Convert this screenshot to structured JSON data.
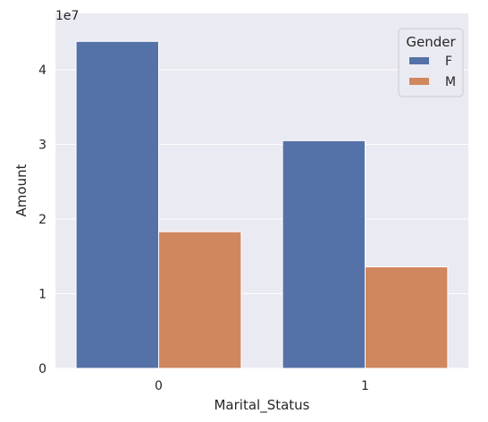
{
  "chart_data": {
    "type": "bar",
    "categories": [
      "0",
      "1"
    ],
    "series": [
      {
        "name": "F",
        "values": [
          43800000,
          30500000
        ],
        "color": "#5572A8"
      },
      {
        "name": "M",
        "values": [
          18300000,
          13600000
        ],
        "color": "#D0875E"
      }
    ],
    "xlabel": "Marital_Status",
    "ylabel": "Amount",
    "y_offset_label": "1e7",
    "y_ticks": [
      "0",
      "1",
      "2",
      "3",
      "4"
    ],
    "ylim": [
      0,
      46000000
    ],
    "grid": true,
    "legend": {
      "title": "Gender",
      "placement": "top-right"
    },
    "colors": {
      "background": "#EAEAF2",
      "grid": "#FFFFFF"
    }
  }
}
